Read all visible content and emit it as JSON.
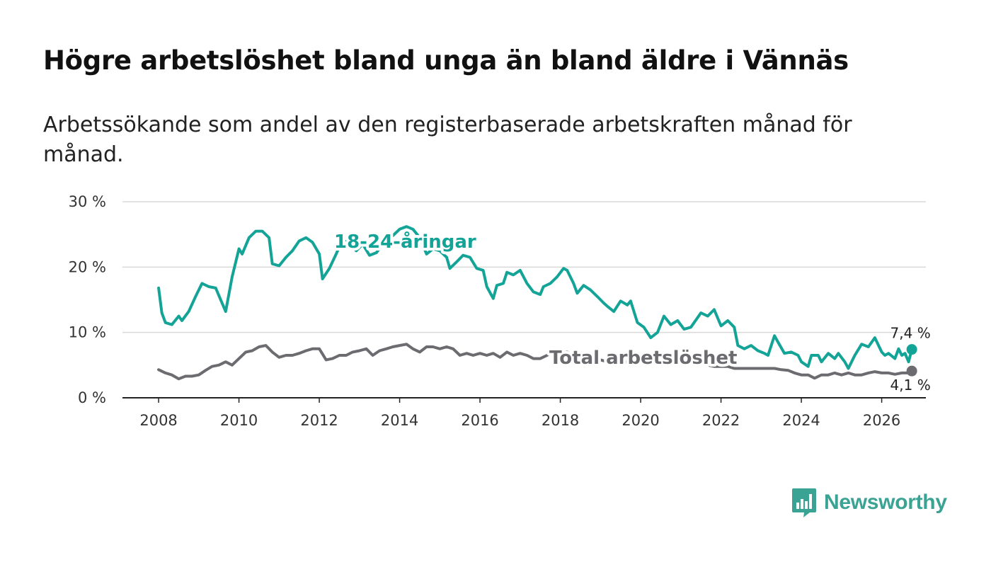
{
  "header": {
    "title": "Högre arbetslöshet bland unga än bland äldre i Vännäs",
    "subtitle": "Arbetssökande som andel av den registerbaserade arbetskraften månad för månad."
  },
  "brand": {
    "name": "Newsworthy",
    "icon": "newsworthy-logo-icon",
    "color": "#3aa393"
  },
  "chart_data": {
    "type": "line",
    "title": "Högre arbetslöshet bland unga än bland äldre i Vännäs",
    "subtitle": "Arbetssökande som andel av den registerbaserade arbetskraften månad för månad.",
    "xlabel": "",
    "ylabel": "",
    "xlim": [
      2007.1,
      2027.1
    ],
    "ylim": [
      0,
      30
    ],
    "x_ticks": [
      2008,
      2010,
      2012,
      2014,
      2016,
      2018,
      2020,
      2022,
      2024,
      2026
    ],
    "x_tick_labels": [
      "2008",
      "2010",
      "2012",
      "2014",
      "2016",
      "2018",
      "2020",
      "2022",
      "2024",
      "2026"
    ],
    "y_ticks": [
      0,
      10,
      20,
      30
    ],
    "y_tick_labels": [
      "0 %",
      "10 %",
      "20 %",
      "30 %"
    ],
    "grid": true,
    "series": [
      {
        "name": "18-24-åringar",
        "label": "18-24-åringar",
        "color": "#13a497",
        "end_label": "7,4 %",
        "points": [
          [
            2008.0,
            16.8
          ],
          [
            2008.08,
            13.0
          ],
          [
            2008.17,
            11.5
          ],
          [
            2008.33,
            11.2
          ],
          [
            2008.5,
            12.5
          ],
          [
            2008.58,
            11.8
          ],
          [
            2008.75,
            13.2
          ],
          [
            2008.92,
            15.5
          ],
          [
            2009.08,
            17.5
          ],
          [
            2009.25,
            17.0
          ],
          [
            2009.42,
            16.8
          ],
          [
            2009.58,
            14.5
          ],
          [
            2009.67,
            13.2
          ],
          [
            2009.83,
            18.5
          ],
          [
            2010.0,
            22.8
          ],
          [
            2010.08,
            22.0
          ],
          [
            2010.25,
            24.5
          ],
          [
            2010.42,
            25.5
          ],
          [
            2010.58,
            25.5
          ],
          [
            2010.75,
            24.5
          ],
          [
            2010.83,
            20.5
          ],
          [
            2011.0,
            20.2
          ],
          [
            2011.17,
            21.5
          ],
          [
            2011.33,
            22.5
          ],
          [
            2011.5,
            24.0
          ],
          [
            2011.67,
            24.5
          ],
          [
            2011.83,
            23.8
          ],
          [
            2012.0,
            22.0
          ],
          [
            2012.08,
            18.2
          ],
          [
            2012.25,
            19.8
          ],
          [
            2012.42,
            22.0
          ],
          [
            2012.58,
            24.2
          ],
          [
            2012.75,
            23.5
          ],
          [
            2012.92,
            22.5
          ],
          [
            2013.08,
            23.5
          ],
          [
            2013.25,
            21.8
          ],
          [
            2013.42,
            22.2
          ],
          [
            2013.58,
            23.5
          ],
          [
            2013.67,
            24.2
          ],
          [
            2013.83,
            24.8
          ],
          [
            2014.0,
            25.8
          ],
          [
            2014.17,
            26.2
          ],
          [
            2014.33,
            25.8
          ],
          [
            2014.5,
            24.5
          ],
          [
            2014.67,
            22.0
          ],
          [
            2014.83,
            22.8
          ],
          [
            2015.0,
            22.5
          ],
          [
            2015.17,
            21.5
          ],
          [
            2015.25,
            19.8
          ],
          [
            2015.42,
            20.8
          ],
          [
            2015.58,
            21.8
          ],
          [
            2015.75,
            21.5
          ],
          [
            2015.92,
            19.8
          ],
          [
            2016.08,
            19.5
          ],
          [
            2016.17,
            17.0
          ],
          [
            2016.33,
            15.2
          ],
          [
            2016.42,
            17.2
          ],
          [
            2016.58,
            17.5
          ],
          [
            2016.67,
            19.2
          ],
          [
            2016.83,
            18.8
          ],
          [
            2017.0,
            19.5
          ],
          [
            2017.17,
            17.5
          ],
          [
            2017.33,
            16.2
          ],
          [
            2017.5,
            15.8
          ],
          [
            2017.58,
            17.0
          ],
          [
            2017.75,
            17.5
          ],
          [
            2017.92,
            18.5
          ],
          [
            2018.08,
            19.8
          ],
          [
            2018.17,
            19.5
          ],
          [
            2018.33,
            17.5
          ],
          [
            2018.42,
            16.0
          ],
          [
            2018.58,
            17.2
          ],
          [
            2018.75,
            16.5
          ],
          [
            2018.92,
            15.5
          ],
          [
            2019.08,
            14.5
          ],
          [
            2019.17,
            14.0
          ],
          [
            2019.33,
            13.2
          ],
          [
            2019.5,
            14.8
          ],
          [
            2019.67,
            14.2
          ],
          [
            2019.75,
            14.8
          ],
          [
            2019.92,
            11.5
          ],
          [
            2020.08,
            10.8
          ],
          [
            2020.25,
            9.2
          ],
          [
            2020.42,
            10.0
          ],
          [
            2020.58,
            12.5
          ],
          [
            2020.75,
            11.2
          ],
          [
            2020.92,
            11.8
          ],
          [
            2021.08,
            10.5
          ],
          [
            2021.25,
            10.8
          ],
          [
            2021.5,
            13.0
          ],
          [
            2021.67,
            12.5
          ],
          [
            2021.83,
            13.5
          ],
          [
            2022.0,
            11.0
          ],
          [
            2022.17,
            11.8
          ],
          [
            2022.33,
            10.8
          ],
          [
            2022.42,
            8.0
          ],
          [
            2022.58,
            7.5
          ],
          [
            2022.75,
            8.0
          ],
          [
            2022.92,
            7.2
          ],
          [
            2023.08,
            6.8
          ],
          [
            2023.17,
            6.5
          ],
          [
            2023.33,
            9.5
          ],
          [
            2023.42,
            8.5
          ],
          [
            2023.58,
            6.8
          ],
          [
            2023.75,
            7.0
          ],
          [
            2023.92,
            6.5
          ],
          [
            2024.0,
            5.5
          ],
          [
            2024.17,
            4.8
          ],
          [
            2024.25,
            6.5
          ],
          [
            2024.42,
            6.5
          ],
          [
            2024.5,
            5.5
          ],
          [
            2024.67,
            6.8
          ],
          [
            2024.83,
            6.0
          ],
          [
            2024.92,
            6.8
          ],
          [
            2025.08,
            5.5
          ],
          [
            2025.17,
            4.5
          ],
          [
            2025.33,
            6.5
          ],
          [
            2025.5,
            8.2
          ],
          [
            2025.67,
            7.8
          ],
          [
            2025.83,
            9.2
          ],
          [
            2026.0,
            7.0
          ],
          [
            2026.08,
            6.5
          ],
          [
            2026.17,
            6.8
          ],
          [
            2026.33,
            6.0
          ],
          [
            2026.42,
            7.5
          ],
          [
            2026.5,
            6.5
          ],
          [
            2026.58,
            6.8
          ],
          [
            2026.67,
            5.5
          ],
          [
            2026.75,
            7.4
          ]
        ]
      },
      {
        "name": "Total arbetslöshet",
        "label": "Total arbetslöshet",
        "color": "#6b6b70",
        "end_label": "4,1 %",
        "points": [
          [
            2008.0,
            4.3
          ],
          [
            2008.17,
            3.8
          ],
          [
            2008.33,
            3.5
          ],
          [
            2008.5,
            2.9
          ],
          [
            2008.67,
            3.3
          ],
          [
            2008.83,
            3.3
          ],
          [
            2009.0,
            3.5
          ],
          [
            2009.17,
            4.2
          ],
          [
            2009.33,
            4.8
          ],
          [
            2009.5,
            5.0
          ],
          [
            2009.67,
            5.5
          ],
          [
            2009.83,
            5.0
          ],
          [
            2010.0,
            6.0
          ],
          [
            2010.17,
            7.0
          ],
          [
            2010.33,
            7.2
          ],
          [
            2010.5,
            7.8
          ],
          [
            2010.67,
            8.0
          ],
          [
            2010.83,
            7.0
          ],
          [
            2011.0,
            6.2
          ],
          [
            2011.17,
            6.5
          ],
          [
            2011.33,
            6.5
          ],
          [
            2011.5,
            6.8
          ],
          [
            2011.67,
            7.2
          ],
          [
            2011.83,
            7.5
          ],
          [
            2012.0,
            7.5
          ],
          [
            2012.17,
            5.8
          ],
          [
            2012.33,
            6.0
          ],
          [
            2012.5,
            6.5
          ],
          [
            2012.67,
            6.5
          ],
          [
            2012.83,
            7.0
          ],
          [
            2013.0,
            7.2
          ],
          [
            2013.17,
            7.5
          ],
          [
            2013.33,
            6.5
          ],
          [
            2013.5,
            7.2
          ],
          [
            2013.67,
            7.5
          ],
          [
            2013.83,
            7.8
          ],
          [
            2014.0,
            8.0
          ],
          [
            2014.17,
            8.2
          ],
          [
            2014.33,
            7.5
          ],
          [
            2014.5,
            7.0
          ],
          [
            2014.67,
            7.8
          ],
          [
            2014.83,
            7.8
          ],
          [
            2015.0,
            7.5
          ],
          [
            2015.17,
            7.8
          ],
          [
            2015.33,
            7.5
          ],
          [
            2015.5,
            6.5
          ],
          [
            2015.67,
            6.8
          ],
          [
            2015.83,
            6.5
          ],
          [
            2016.0,
            6.8
          ],
          [
            2016.17,
            6.5
          ],
          [
            2016.33,
            6.8
          ],
          [
            2016.5,
            6.2
          ],
          [
            2016.67,
            7.0
          ],
          [
            2016.83,
            6.5
          ],
          [
            2017.0,
            6.8
          ],
          [
            2017.17,
            6.5
          ],
          [
            2017.33,
            6.0
          ],
          [
            2017.5,
            6.0
          ],
          [
            2017.67,
            6.5
          ],
          [
            2017.83,
            7.0
          ],
          [
            2018.0,
            6.8
          ],
          [
            2018.17,
            7.0
          ],
          [
            2018.33,
            6.5
          ],
          [
            2018.5,
            6.2
          ],
          [
            2018.67,
            5.8
          ],
          [
            2018.83,
            6.0
          ],
          [
            2019.0,
            5.8
          ],
          [
            2019.17,
            5.5
          ],
          [
            2019.33,
            5.8
          ],
          [
            2019.5,
            5.5
          ],
          [
            2019.67,
            5.5
          ],
          [
            2019.83,
            5.2
          ],
          [
            2020.0,
            5.5
          ],
          [
            2020.17,
            5.5
          ],
          [
            2020.33,
            5.8
          ],
          [
            2020.5,
            5.8
          ],
          [
            2020.67,
            5.5
          ],
          [
            2020.83,
            5.2
          ],
          [
            2021.0,
            5.5
          ],
          [
            2021.17,
            5.5
          ],
          [
            2021.33,
            5.2
          ],
          [
            2021.5,
            5.5
          ],
          [
            2021.67,
            5.0
          ],
          [
            2021.83,
            4.8
          ],
          [
            2022.0,
            4.8
          ],
          [
            2022.17,
            4.8
          ],
          [
            2022.33,
            4.5
          ],
          [
            2022.5,
            4.5
          ],
          [
            2022.67,
            4.5
          ],
          [
            2022.83,
            4.5
          ],
          [
            2023.0,
            4.5
          ],
          [
            2023.17,
            4.5
          ],
          [
            2023.33,
            4.5
          ],
          [
            2023.5,
            4.3
          ],
          [
            2023.67,
            4.2
          ],
          [
            2023.83,
            3.8
          ],
          [
            2024.0,
            3.5
          ],
          [
            2024.17,
            3.5
          ],
          [
            2024.33,
            3.0
          ],
          [
            2024.5,
            3.5
          ],
          [
            2024.67,
            3.5
          ],
          [
            2024.83,
            3.8
          ],
          [
            2025.0,
            3.5
          ],
          [
            2025.17,
            3.8
          ],
          [
            2025.33,
            3.5
          ],
          [
            2025.5,
            3.5
          ],
          [
            2025.67,
            3.8
          ],
          [
            2025.83,
            4.0
          ],
          [
            2026.0,
            3.8
          ],
          [
            2026.17,
            3.8
          ],
          [
            2026.33,
            3.6
          ],
          [
            2026.5,
            3.8
          ],
          [
            2026.67,
            3.8
          ],
          [
            2026.75,
            4.1
          ]
        ]
      }
    ]
  }
}
